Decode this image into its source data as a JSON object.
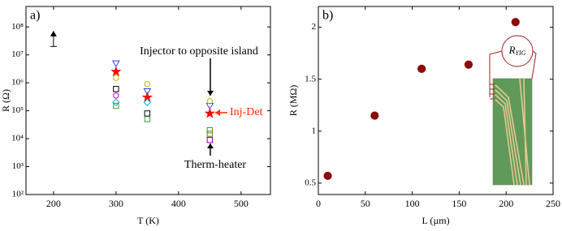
{
  "chart_data": [
    {
      "type": "scatter",
      "panel_label": "a)",
      "xlabel": "T (K)",
      "ylabel": "R (Ω)",
      "log_y": true,
      "xlim": [
        156,
        547
      ],
      "xticks": [
        200,
        300,
        400,
        500
      ],
      "ylim": [
        100,
        540000000
      ],
      "yticks": [
        {
          "value": 100,
          "label": "10²"
        },
        {
          "value": 1000,
          "label": "10³"
        },
        {
          "value": 10000,
          "label": "10⁴"
        },
        {
          "value": 100000,
          "label": "10⁵"
        },
        {
          "value": 1000000,
          "label": "10⁶"
        },
        {
          "value": 10000000,
          "label": "10⁷"
        },
        {
          "value": 100000000,
          "label": "10⁸"
        }
      ],
      "x": [
        300,
        350,
        450
      ],
      "series": [
        {
          "marker": "triangle-down",
          "color": "#3b3bff",
          "values": [
            5000000,
            500000,
            150000
          ]
        },
        {
          "marker": "circle",
          "color": "#b8b800",
          "values": [
            1500000,
            900000,
            220000
          ]
        },
        {
          "marker": "star",
          "color": "#ff0000",
          "values": [
            2500000,
            300000,
            80000
          ]
        },
        {
          "marker": "square",
          "color": "#000000",
          "values": [
            600000,
            80000,
            null
          ]
        },
        {
          "marker": "circle",
          "color": "#d000d0",
          "values": [
            350000,
            null,
            null
          ]
        },
        {
          "marker": "diamond",
          "color": "#00b8c8",
          "values": [
            200000,
            200000,
            null
          ]
        },
        {
          "marker": "square",
          "color": "#3a9a3a",
          "values": [
            150000,
            50000,
            20000
          ]
        },
        {
          "marker": "square",
          "color": "#708000",
          "values": [
            null,
            null,
            15000
          ]
        },
        {
          "marker": "square",
          "color": "#8000a0",
          "values": [
            null,
            null,
            9000
          ]
        }
      ],
      "limit_arrow": {
        "x": 200,
        "y": [
          20000000,
          60000000
        ]
      },
      "annotations": [
        {
          "text": "Injector to opposite island",
          "color": "#000000"
        },
        {
          "text": "Inj-Det",
          "color": "#ff2a00"
        },
        {
          "text": "Therm-heater",
          "color": "#000000"
        }
      ]
    },
    {
      "type": "scatter",
      "panel_label": "b)",
      "xlabel": "L (µm)",
      "ylabel": "R (MΩ)",
      "log_y": false,
      "xlim": [
        0,
        250
      ],
      "xticks": [
        0,
        50,
        100,
        150,
        200,
        250
      ],
      "ylim": [
        0.39,
        2.2
      ],
      "yticks": [
        0.5,
        1.0,
        1.5,
        2.0
      ],
      "x": [
        10,
        60,
        110,
        160,
        210
      ],
      "series": [
        {
          "marker": "filled-circle",
          "color": "#8b0a0a",
          "values": [
            0.57,
            1.15,
            1.6,
            1.64,
            2.05
          ]
        }
      ],
      "inset_label": "R",
      "inset_label_sub": "YIG"
    }
  ]
}
